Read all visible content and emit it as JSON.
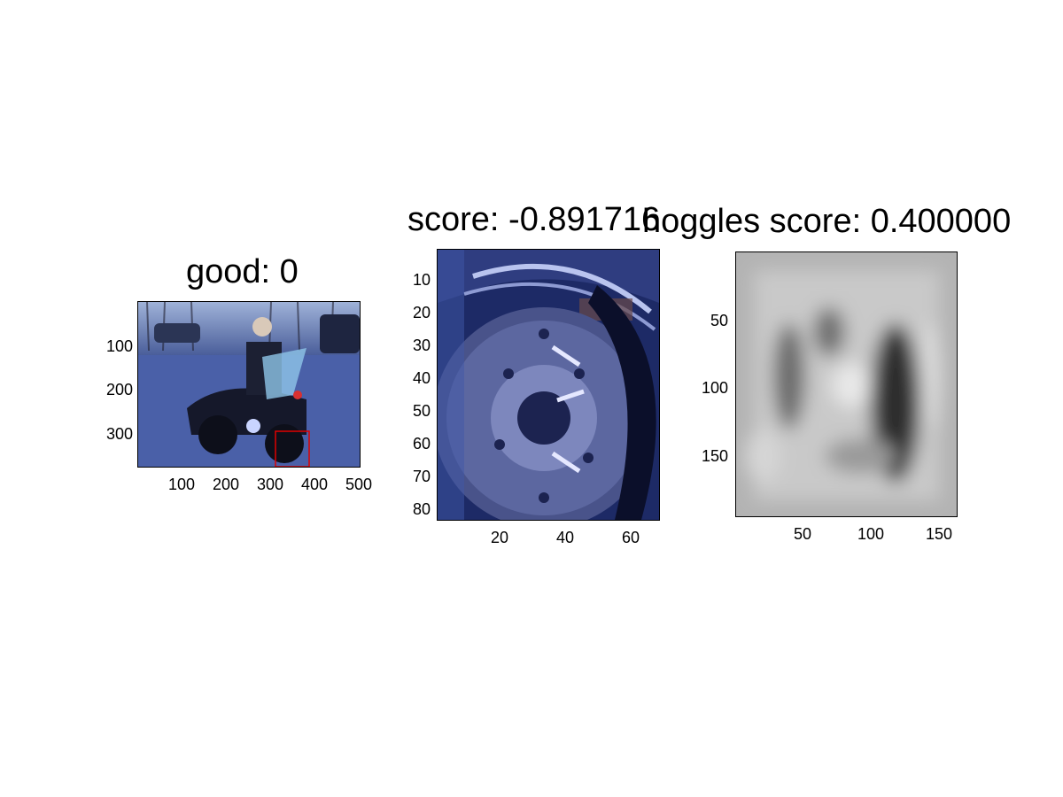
{
  "figure": {
    "panels": [
      {
        "title": "good: 0",
        "image_desc_icon": "motorcycle-police-photo",
        "yticks": [
          "100",
          "200",
          "300"
        ],
        "xticks": [
          "100",
          "200",
          "300",
          "400",
          "500"
        ]
      },
      {
        "title": "score: -0.891716",
        "image_desc_icon": "wheel-crop-photo",
        "yticks": [
          "10",
          "20",
          "30",
          "40",
          "50",
          "60",
          "70",
          "80"
        ],
        "xticks": [
          "20",
          "40",
          "60"
        ]
      },
      {
        "title": "hoggles score: 0.400000",
        "image_desc_icon": "hog-visualization",
        "yticks": [
          "50",
          "100",
          "150"
        ],
        "xticks": [
          "50",
          "100",
          "150"
        ]
      }
    ]
  }
}
